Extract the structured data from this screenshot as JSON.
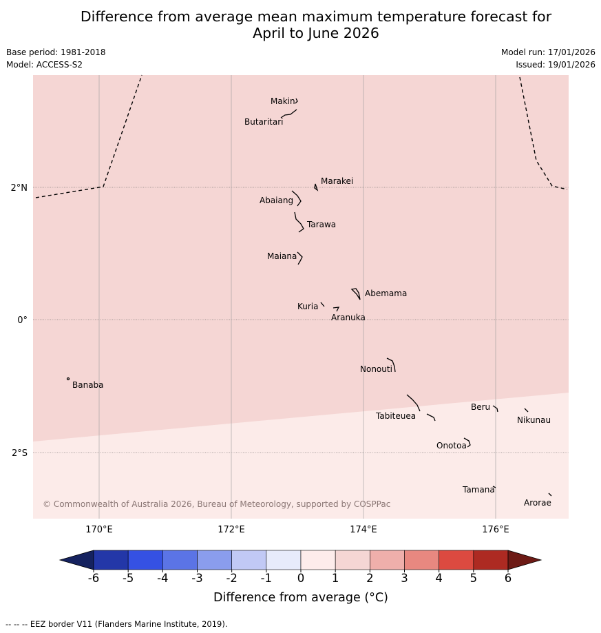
{
  "title_line1": "Difference from average mean maximum temperature forecast for",
  "title_line2": "April to June 2026",
  "base_period": "Base period: 1981-2018",
  "model": "Model: ACCESS-S2",
  "model_run": "Model run: 17/01/2026",
  "issued": "Issued: 19/01/2026",
  "map": {
    "lon_ticks": [
      "170°E",
      "172°E",
      "174°E",
      "176°E"
    ],
    "lat_ticks": [
      "2°N",
      "0°",
      "2°S"
    ],
    "islands": [
      "Makin",
      "Butaritari",
      "Marakei",
      "Abaiang",
      "Tarawa",
      "Maiana",
      "Abemama",
      "Kuria",
      "Aranuka",
      "Nonouti",
      "Banaba",
      "Beru",
      "Nikunau",
      "Tabiteuea",
      "Onotoa",
      "Tamana",
      "Arorae"
    ],
    "copyright": "© Commonwealth of Australia 2026, Bureau of Meteorology, supported by COSPPac",
    "anomaly_zones": [
      {
        "region": "north of boundary",
        "range": "1 to 2",
        "color": "#f5d6d4"
      },
      {
        "region": "south of boundary",
        "range": "0 to 1",
        "color": "#fcebe9"
      }
    ]
  },
  "colorbar": {
    "tick_labels": [
      "-6",
      "-5",
      "-4",
      "-3",
      "-2",
      "-1",
      "0",
      "1",
      "2",
      "3",
      "4",
      "5",
      "6"
    ],
    "colors": [
      "#2337a8",
      "#3551e3",
      "#5b74e6",
      "#8a9ded",
      "#c1c9f5",
      "#e7ebfb",
      "#fdeceb",
      "#f5d6d4",
      "#efafab",
      "#e88880",
      "#dc4a40",
      "#ad2a22"
    ],
    "under_color": "#15225f",
    "over_color": "#6d1a15",
    "label": "Difference from average (°C)"
  },
  "legend": {
    "line_sample": "--  --  --",
    "eez_text": "EEZ border V11 (Flanders Marine Institute, 2019)."
  }
}
